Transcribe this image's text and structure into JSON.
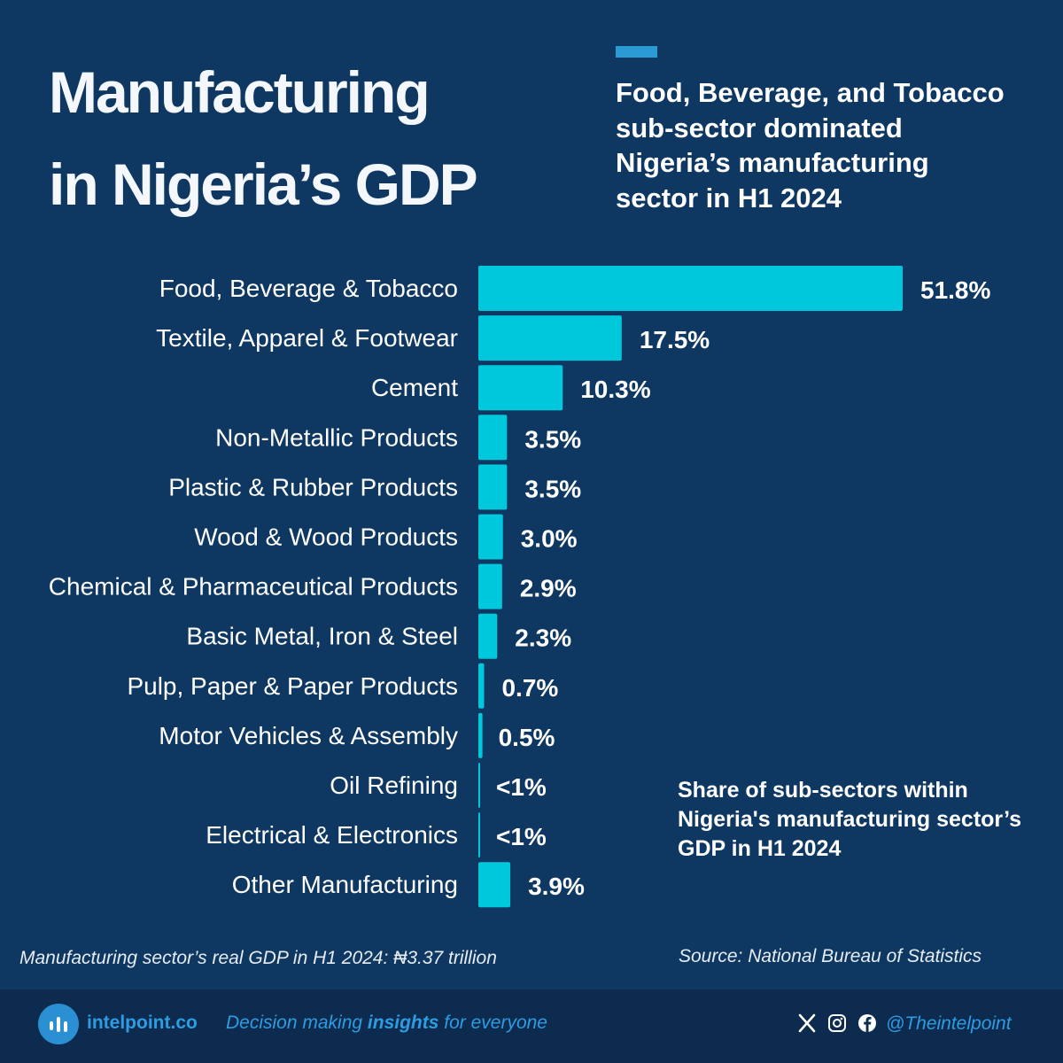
{
  "header": {
    "title_line1": "Manufacturing",
    "title_line2": "in Nigeria’s GDP",
    "subtitle_lines": [
      "Food, Beverage, and Tobacco",
      "sub-sector dominated",
      "Nigeria’s manufacturing",
      "sector in H1 2024"
    ]
  },
  "chart_data": {
    "type": "bar",
    "orientation": "horizontal",
    "title": "Share of sub-sectors within Nigeria's manufacturing sector’s GDP in H1 2024",
    "categories": [
      "Food, Beverage & Tobacco",
      "Textile, Apparel & Footwear",
      "Cement",
      "Non-Metallic Products",
      "Plastic & Rubber Products",
      "Wood & Wood Products",
      "Chemical & Pharmaceutical Products",
      "Basic Metal, Iron & Steel",
      "Pulp, Paper & Paper Products",
      "Motor Vehicles & Assembly",
      "Oil Refining",
      "Electrical & Electronics",
      "Other Manufacturing"
    ],
    "values": [
      51.8,
      17.5,
      10.3,
      3.5,
      3.5,
      3.0,
      2.9,
      2.3,
      0.7,
      0.5,
      0.1,
      0.1,
      3.9
    ],
    "value_labels": [
      "51.8%",
      "17.5%",
      "10.3%",
      "3.5%",
      "3.5%",
      "3.0%",
      "2.9%",
      "2.3%",
      "0.7%",
      "0.5%",
      "<1%",
      "<1%",
      "3.9%"
    ],
    "unit": "%",
    "xlim": [
      0,
      51.8
    ],
    "color": "#00c8dc",
    "grid": false
  },
  "caption": {
    "lines": [
      "Share of sub-sectors within",
      "Nigeria's manufacturing sector’s",
      "GDP in H1 2024"
    ]
  },
  "notes": {
    "gdp_note": "Manufacturing sector’s real GDP in H1 2024: ₦3.37 trillion",
    "source": "Source: National Bureau of Statistics"
  },
  "footer": {
    "brand": "intelpoint.co",
    "tagline_pre": "Decision making ",
    "tagline_bold": "insights",
    "tagline_post": " for everyone",
    "handle": "@Theintelpoint",
    "icons": [
      "x-icon",
      "instagram-icon",
      "facebook-icon"
    ]
  },
  "colors": {
    "background": "#0e3862",
    "bar": "#00c8dc",
    "accent": "#2b9bd6",
    "footer_bg": "#0c2b4f",
    "brand_blue": "#2f9be0"
  }
}
